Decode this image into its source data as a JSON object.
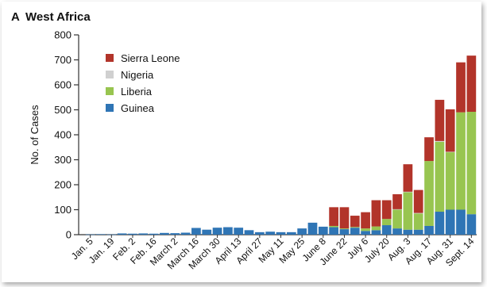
{
  "panel": {
    "letter": "A",
    "title": "West Africa"
  },
  "chart_data": {
    "type": "bar",
    "stacked": true,
    "title": "West Africa",
    "xlabel": "",
    "ylabel": "No. of Cases",
    "ylim": [
      0,
      800
    ],
    "yticks": [
      0,
      100,
      200,
      300,
      400,
      500,
      600,
      700,
      800
    ],
    "xtick_labels": [
      "Jan. 5",
      "Jan. 19",
      "Feb. 2",
      "Feb. 16",
      "March 2",
      "March 16",
      "March 30",
      "April 13",
      "April 27",
      "May 11",
      "May 25",
      "June 8",
      "June 22",
      "July 6",
      "July 20",
      "Aug. 3",
      "Aug. 17",
      "Aug. 31",
      "Sept. 14"
    ],
    "categories": [
      "Jan. 5",
      "Jan. 12",
      "Jan. 19",
      "Jan. 26",
      "Feb. 2",
      "Feb. 9",
      "Feb. 16",
      "Feb. 23",
      "March 2",
      "March 9",
      "March 16",
      "March 23",
      "March 30",
      "April 6",
      "April 13",
      "April 20",
      "April 27",
      "May 4",
      "May 11",
      "May 18",
      "May 25",
      "June 1",
      "June 8",
      "June 15",
      "June 22",
      "June 29",
      "July 6",
      "July 13",
      "July 20",
      "July 27",
      "Aug. 3",
      "Aug. 10",
      "Aug. 17",
      "Aug. 24",
      "Aug. 31",
      "Sept. 7",
      "Sept. 14"
    ],
    "legend": {
      "position": "top-left",
      "entries": [
        "Sierra Leone",
        "Nigeria",
        "Liberia",
        "Guinea"
      ]
    },
    "series": [
      {
        "name": "Guinea",
        "color": "#2f75b5",
        "values": [
          1,
          2,
          1,
          5,
          4,
          5,
          4,
          7,
          6,
          8,
          27,
          20,
          28,
          30,
          28,
          18,
          10,
          12,
          10,
          10,
          25,
          48,
          32,
          30,
          22,
          28,
          15,
          18,
          38,
          25,
          20,
          20,
          35,
          92,
          100,
          100,
          82
        ]
      },
      {
        "name": "Liberia",
        "color": "#98c550",
        "values": [
          0,
          0,
          0,
          0,
          0,
          0,
          0,
          0,
          0,
          0,
          0,
          0,
          0,
          0,
          0,
          0,
          0,
          0,
          0,
          0,
          0,
          0,
          0,
          5,
          3,
          3,
          10,
          15,
          25,
          75,
          150,
          65,
          260,
          280,
          230,
          390,
          410
        ]
      },
      {
        "name": "Nigeria",
        "color": "#d0d0d0",
        "values": [
          0,
          0,
          0,
          0,
          0,
          0,
          0,
          0,
          0,
          0,
          0,
          0,
          0,
          0,
          0,
          0,
          0,
          0,
          0,
          0,
          0,
          0,
          0,
          0,
          0,
          0,
          0,
          0,
          0,
          2,
          2,
          2,
          0,
          3,
          2,
          0,
          0
        ]
      },
      {
        "name": "Sierra Leone",
        "color": "#b2342a",
        "values": [
          0,
          0,
          0,
          0,
          0,
          0,
          0,
          0,
          0,
          0,
          0,
          0,
          0,
          0,
          0,
          0,
          0,
          0,
          0,
          0,
          0,
          0,
          0,
          75,
          85,
          45,
          65,
          105,
          75,
          60,
          110,
          92,
          95,
          165,
          170,
          200,
          225
        ]
      }
    ]
  }
}
